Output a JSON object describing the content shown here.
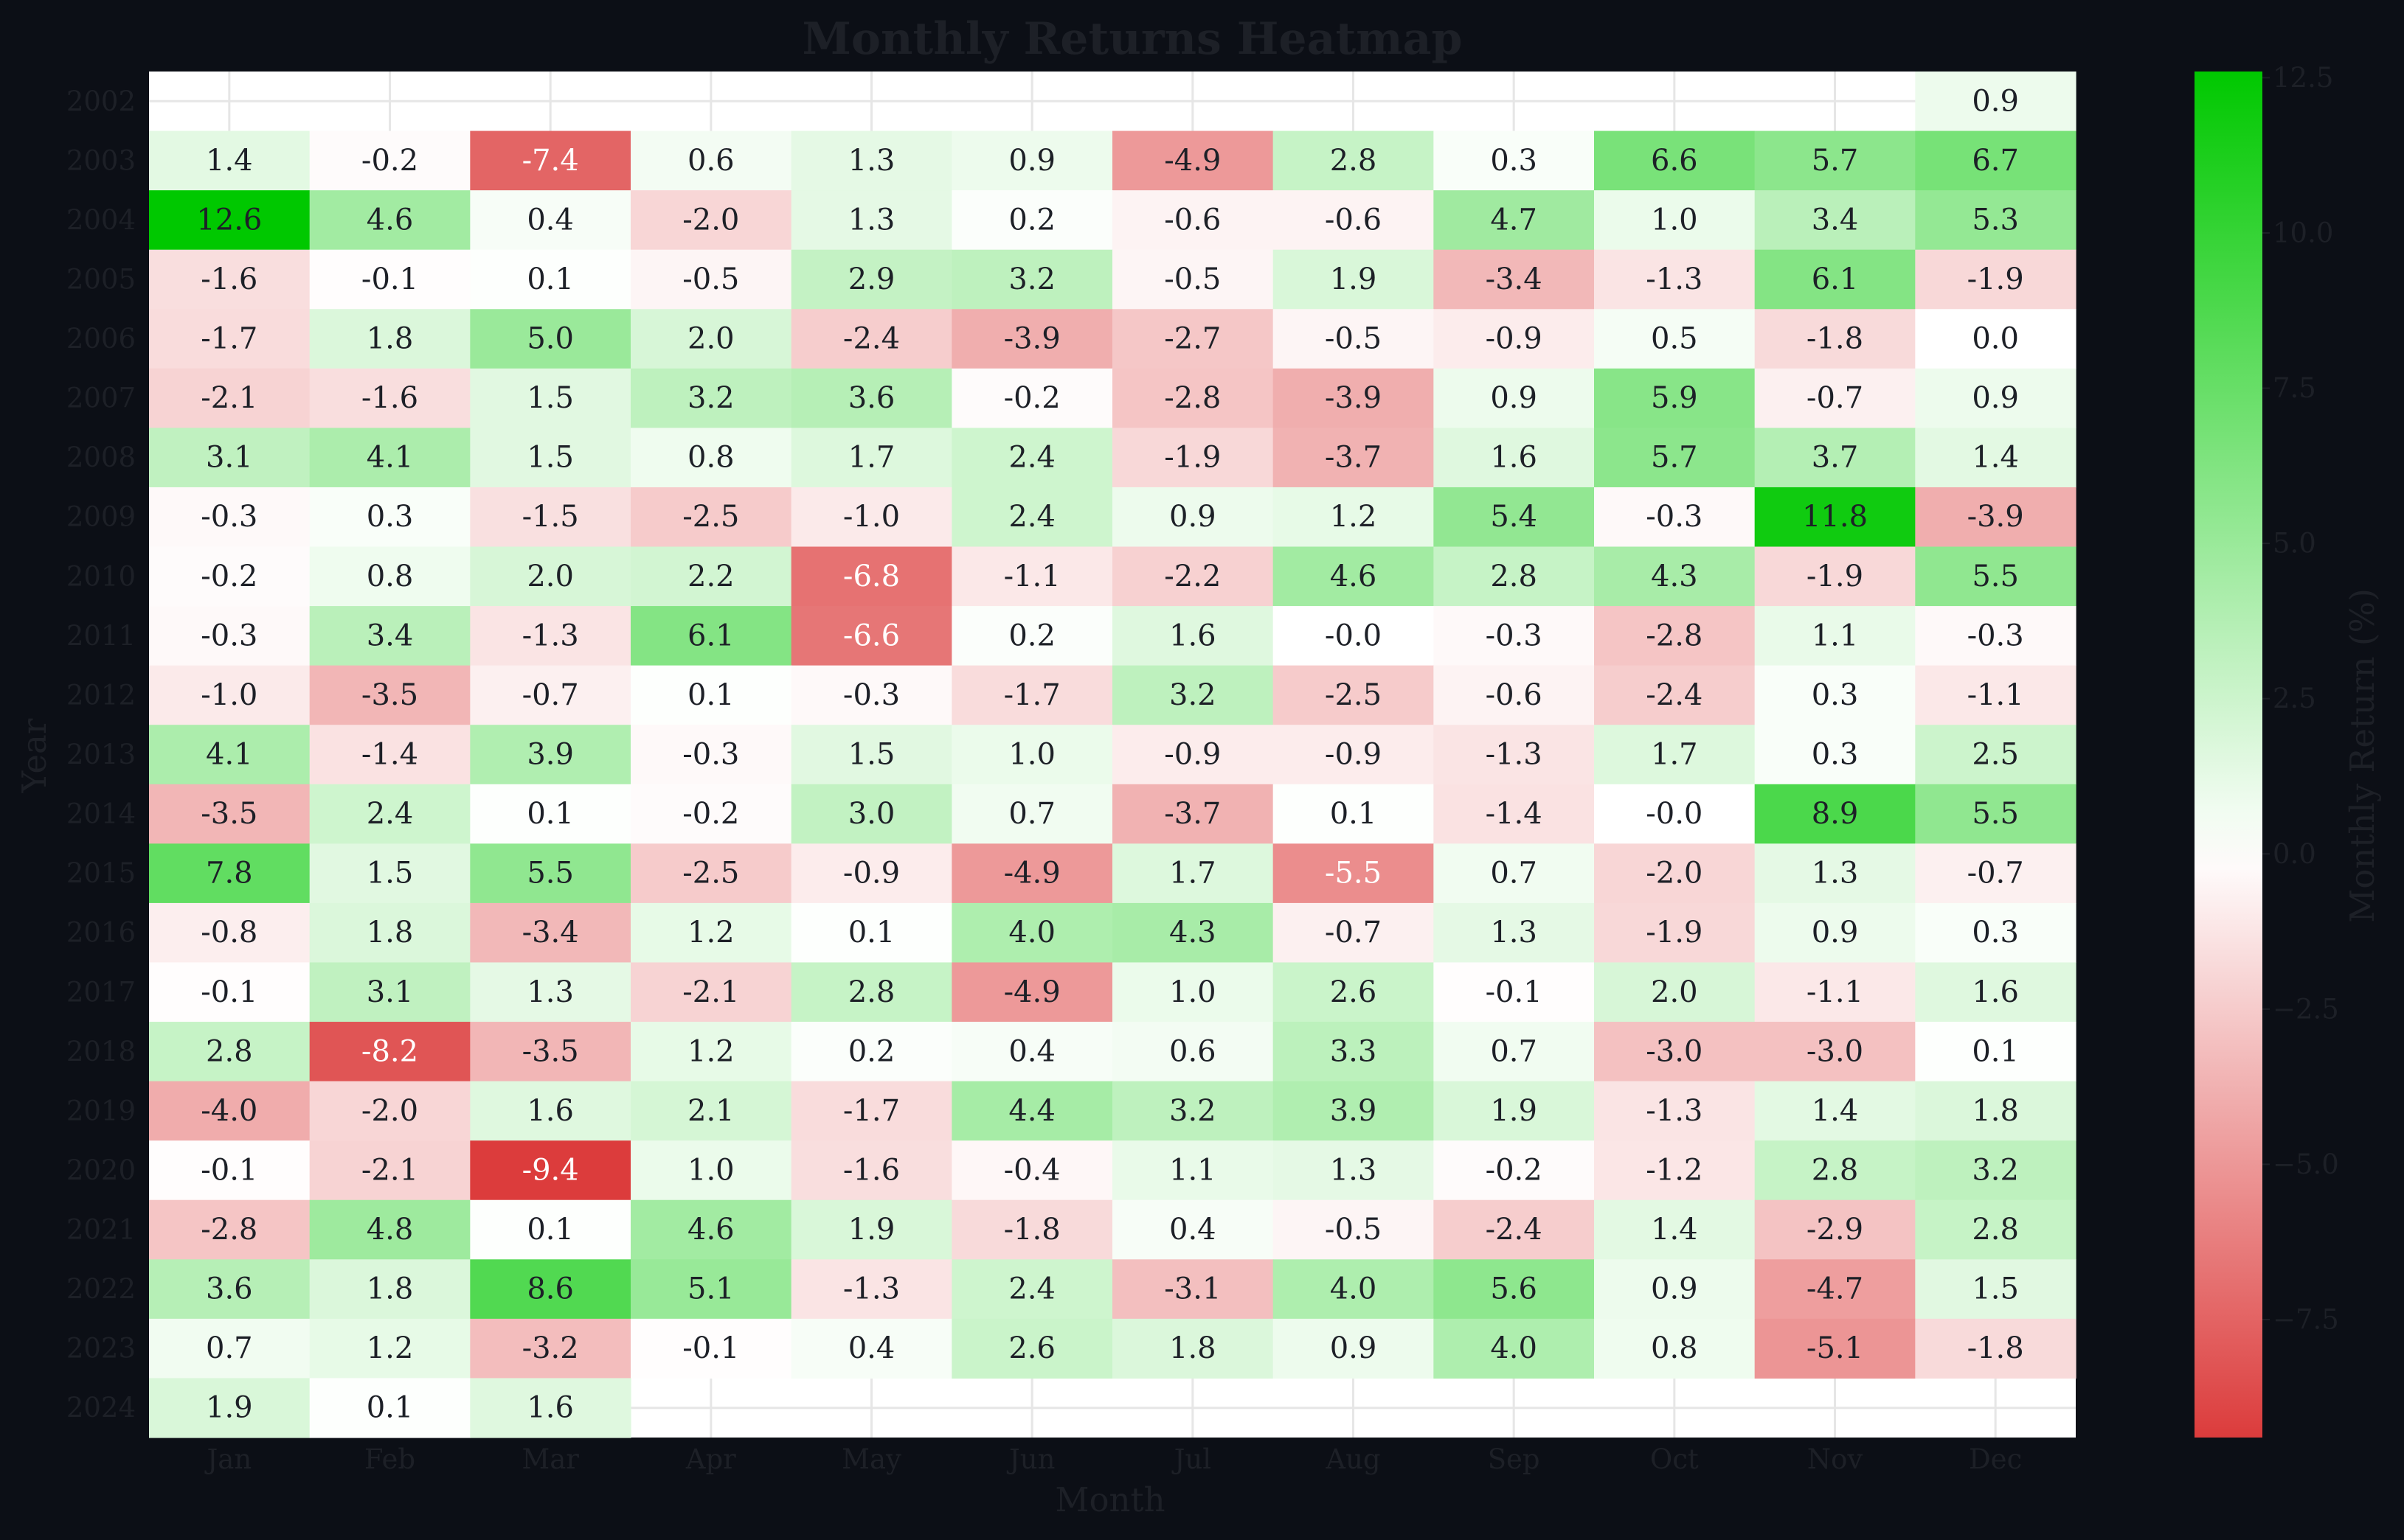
{
  "chart_data": {
    "type": "heatmap",
    "title": "Monthly Returns Heatmap",
    "xlabel": "Month",
    "ylabel": "Year",
    "colorbar_label": "Monthly Return (%)",
    "x_categories": [
      "Jan",
      "Feb",
      "Mar",
      "Apr",
      "May",
      "Jun",
      "Jul",
      "Aug",
      "Sep",
      "Oct",
      "Nov",
      "Dec"
    ],
    "y_categories": [
      "2002",
      "2003",
      "2004",
      "2005",
      "2006",
      "2007",
      "2008",
      "2009",
      "2010",
      "2011",
      "2012",
      "2013",
      "2014",
      "2015",
      "2016",
      "2017",
      "2018",
      "2019",
      "2020",
      "2021",
      "2022",
      "2023",
      "2024"
    ],
    "values": [
      [
        null,
        null,
        null,
        null,
        null,
        null,
        null,
        null,
        null,
        null,
        null,
        0.9
      ],
      [
        1.4,
        -0.2,
        -7.4,
        0.6,
        1.3,
        0.9,
        -4.9,
        2.8,
        0.3,
        6.6,
        5.7,
        6.7
      ],
      [
        12.6,
        4.6,
        0.4,
        -2.0,
        1.3,
        0.2,
        -0.6,
        -0.6,
        4.7,
        1.0,
        3.4,
        5.3
      ],
      [
        -1.6,
        -0.1,
        0.1,
        -0.5,
        2.9,
        3.2,
        -0.5,
        1.9,
        -3.4,
        -1.3,
        6.1,
        -1.9
      ],
      [
        -1.7,
        1.8,
        5.0,
        2.0,
        -2.4,
        -3.9,
        -2.7,
        -0.5,
        -0.9,
        0.5,
        -1.8,
        0.0
      ],
      [
        -2.1,
        -1.6,
        1.5,
        3.2,
        3.6,
        -0.2,
        -2.8,
        -3.9,
        0.9,
        5.9,
        -0.7,
        0.9
      ],
      [
        3.1,
        4.1,
        1.5,
        0.8,
        1.7,
        2.4,
        -1.9,
        -3.7,
        1.6,
        5.7,
        3.7,
        1.4
      ],
      [
        -0.3,
        0.3,
        -1.5,
        -2.5,
        -1.0,
        2.4,
        0.9,
        1.2,
        5.4,
        -0.3,
        11.8,
        -3.9
      ],
      [
        -0.2,
        0.8,
        2.0,
        2.2,
        -6.8,
        -1.1,
        -2.2,
        4.6,
        2.8,
        4.3,
        -1.9,
        5.5
      ],
      [
        -0.3,
        3.4,
        -1.3,
        6.1,
        -6.6,
        0.2,
        1.6,
        -0.0,
        -0.3,
        -2.8,
        1.1,
        -0.3
      ],
      [
        -1.0,
        -3.5,
        -0.7,
        0.1,
        -0.3,
        -1.7,
        3.2,
        -2.5,
        -0.6,
        -2.4,
        0.3,
        -1.1
      ],
      [
        4.1,
        -1.4,
        3.9,
        -0.3,
        1.5,
        1.0,
        -0.9,
        -0.9,
        -1.3,
        1.7,
        0.3,
        2.5
      ],
      [
        -3.5,
        2.4,
        0.1,
        -0.2,
        3.0,
        0.7,
        -3.7,
        0.1,
        -1.4,
        -0.0,
        8.9,
        5.5
      ],
      [
        7.8,
        1.5,
        5.5,
        -2.5,
        -0.9,
        -4.9,
        1.7,
        -5.5,
        0.7,
        -2.0,
        1.3,
        -0.7
      ],
      [
        -0.8,
        1.8,
        -3.4,
        1.2,
        0.1,
        4.0,
        4.3,
        -0.7,
        1.3,
        -1.9,
        0.9,
        0.3
      ],
      [
        -0.1,
        3.1,
        1.3,
        -2.1,
        2.8,
        -4.9,
        1.0,
        2.6,
        -0.1,
        2.0,
        -1.1,
        1.6
      ],
      [
        2.8,
        -8.2,
        -3.5,
        1.2,
        0.2,
        0.4,
        0.6,
        3.3,
        0.7,
        -3.0,
        -3.0,
        0.1
      ],
      [
        -4.0,
        -2.0,
        1.6,
        2.1,
        -1.7,
        4.4,
        3.2,
        3.9,
        1.9,
        -1.3,
        1.4,
        1.8
      ],
      [
        -0.1,
        -2.1,
        -9.4,
        1.0,
        -1.6,
        -0.4,
        1.1,
        1.3,
        -0.2,
        -1.2,
        2.8,
        3.2
      ],
      [
        -2.8,
        4.8,
        0.1,
        4.6,
        1.9,
        -1.8,
        0.4,
        -0.5,
        -2.4,
        1.4,
        -2.9,
        2.8
      ],
      [
        3.6,
        1.8,
        8.6,
        5.1,
        -1.3,
        2.4,
        -3.1,
        4.0,
        5.6,
        0.9,
        -4.7,
        1.5
      ],
      [
        0.7,
        1.2,
        -3.2,
        -0.1,
        0.4,
        2.6,
        1.8,
        0.9,
        4.0,
        0.8,
        -5.1,
        -1.8
      ],
      [
        1.9,
        0.1,
        1.6,
        null,
        null,
        null,
        null,
        null,
        null,
        null,
        null,
        null
      ]
    ],
    "vmin": -9.4,
    "vmax": 12.6,
    "center": 0,
    "colorbar_ticks": [
      "−7.5",
      "−5.0",
      "−2.5",
      "0.0",
      "2.5",
      "5.0",
      "7.5",
      "10.0",
      "12.5"
    ],
    "colorbar_tick_values": [
      -7.5,
      -5.0,
      -2.5,
      0.0,
      2.5,
      5.0,
      7.5,
      10.0,
      12.5
    ],
    "colors": {
      "negative": "#dc3c3c",
      "neutral": "#ffffff",
      "positive": "#00c800",
      "background": "#0c0f16",
      "plot_background": "#ffffff",
      "grid": "#e6e6e6",
      "text_dark": "#1d2027",
      "text_light": "#ffffff"
    },
    "grid": true
  }
}
